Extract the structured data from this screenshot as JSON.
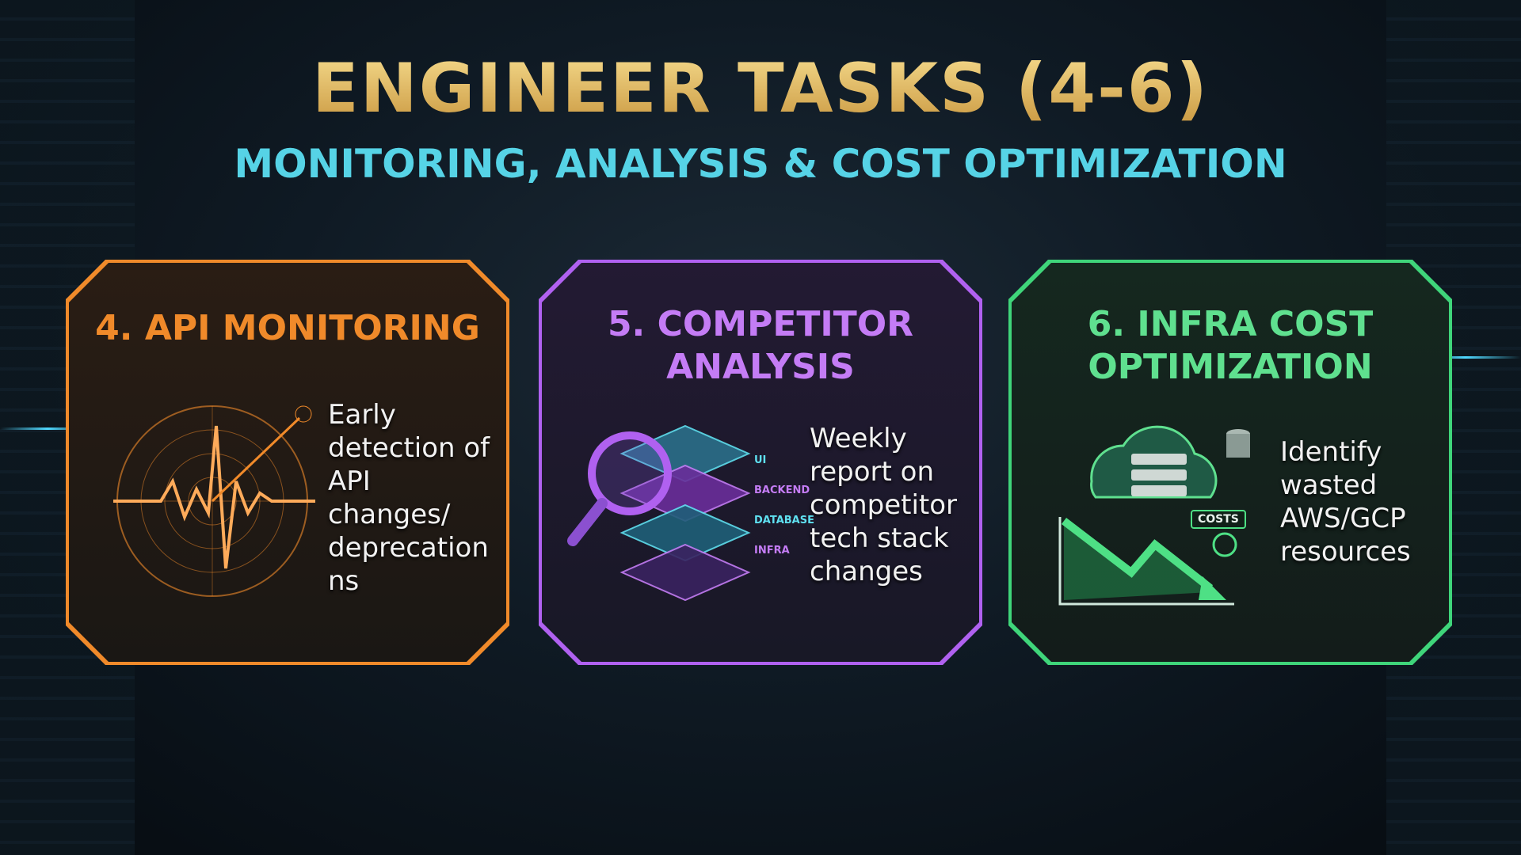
{
  "title": "ENGINEER TASKS (4-6)",
  "subtitle": "MONITORING, ANALYSIS & COST OPTIMIZATION",
  "colors": {
    "orange": "#f08a2a",
    "purple": "#b061f0",
    "green": "#3fd57a",
    "gold": "#e9c16a",
    "cyan": "#56d3e6"
  },
  "cards": [
    {
      "heading": "4. API MONITORING",
      "lines": [
        "Early",
        "detection of",
        "API",
        "changes/",
        "deprecation",
        "ns"
      ],
      "icon": "radar-heartbeat-icon"
    },
    {
      "heading_lines": [
        "5. COMPETITOR",
        "ANALYSIS"
      ],
      "lines": [
        "Weekly",
        "report on",
        "competitor",
        "tech stack",
        "changes"
      ],
      "icon": "magnifier-stack-icon",
      "stack_labels": [
        "UI",
        "BACKEND",
        "DATABASE",
        "INFRA"
      ]
    },
    {
      "heading_lines": [
        "6. INFRA COST",
        "OPTIMIZATION"
      ],
      "lines": [
        "Identify",
        "wasted",
        "AWS/GCP",
        "resources"
      ],
      "icon": "cloud-cost-chart-icon",
      "badge": "COSTS"
    }
  ]
}
